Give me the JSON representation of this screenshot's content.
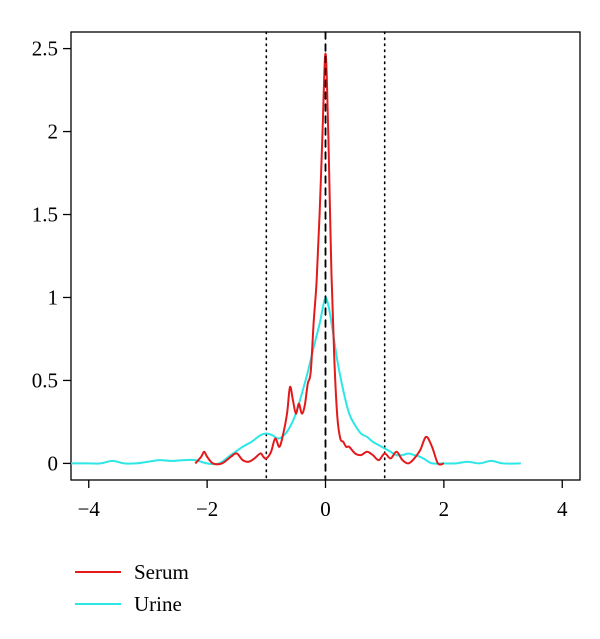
{
  "chart_data": {
    "type": "line",
    "title": "",
    "xlabel": "",
    "ylabel": "",
    "xlim": [
      -4.3,
      4.3
    ],
    "ylim": [
      -0.1,
      2.6
    ],
    "x_ticks": [
      -4,
      -2,
      0,
      2,
      4
    ],
    "x_tick_labels": [
      "−4",
      "−2",
      "0",
      "2",
      "4"
    ],
    "y_ticks": [
      0,
      0.5,
      1,
      1.5,
      2,
      2.5
    ],
    "y_tick_labels": [
      "0",
      "0.5",
      "1",
      "1.5",
      "2",
      "2.5"
    ],
    "grid": false,
    "legend_position": "bottom-left",
    "reference_lines": [
      {
        "x": -1,
        "style": "dotted",
        "color": "#000000"
      },
      {
        "x": 0,
        "style": "dashed",
        "color": "#000000"
      },
      {
        "x": 1,
        "style": "dotted",
        "color": "#000000"
      }
    ],
    "series": [
      {
        "name": "Serum",
        "color": "#e31a1c",
        "x": [
          -2.2,
          -2.1,
          -2.05,
          -2.0,
          -1.9,
          -1.75,
          -1.6,
          -1.5,
          -1.4,
          -1.3,
          -1.2,
          -1.1,
          -1.05,
          -1.0,
          -0.92,
          -0.85,
          -0.78,
          -0.72,
          -0.65,
          -0.6,
          -0.55,
          -0.5,
          -0.45,
          -0.4,
          -0.35,
          -0.3,
          -0.25,
          -0.2,
          -0.15,
          -0.1,
          -0.05,
          -0.02,
          0.0,
          0.02,
          0.05,
          0.1,
          0.15,
          0.2,
          0.25,
          0.3,
          0.35,
          0.4,
          0.5,
          0.6,
          0.7,
          0.8,
          0.9,
          1.0,
          1.1,
          1.2,
          1.3,
          1.4,
          1.5,
          1.6,
          1.7,
          1.8,
          1.9,
          2.0
        ],
        "values": [
          0.0,
          0.04,
          0.07,
          0.04,
          0.0,
          0.0,
          0.04,
          0.06,
          0.02,
          0.01,
          0.03,
          0.06,
          0.04,
          0.03,
          0.07,
          0.15,
          0.1,
          0.17,
          0.3,
          0.46,
          0.38,
          0.3,
          0.36,
          0.3,
          0.35,
          0.48,
          0.55,
          0.85,
          1.1,
          1.5,
          2.0,
          2.35,
          2.47,
          2.35,
          1.95,
          1.15,
          0.62,
          0.28,
          0.15,
          0.13,
          0.1,
          0.1,
          0.06,
          0.05,
          0.07,
          0.05,
          0.02,
          0.06,
          0.03,
          0.07,
          0.02,
          0.0,
          0.03,
          0.08,
          0.16,
          0.1,
          0.0,
          0.0
        ]
      },
      {
        "name": "Urine",
        "color": "#2de6e6",
        "x": [
          -4.3,
          -4.0,
          -3.8,
          -3.6,
          -3.4,
          -3.2,
          -3.0,
          -2.8,
          -2.6,
          -2.4,
          -2.2,
          -2.0,
          -1.8,
          -1.6,
          -1.4,
          -1.25,
          -1.1,
          -1.0,
          -0.9,
          -0.8,
          -0.7,
          -0.6,
          -0.5,
          -0.4,
          -0.3,
          -0.2,
          -0.1,
          -0.05,
          0.0,
          0.05,
          0.1,
          0.2,
          0.3,
          0.4,
          0.5,
          0.6,
          0.7,
          0.8,
          0.9,
          1.0,
          1.1,
          1.2,
          1.3,
          1.4,
          1.5,
          1.6,
          1.7,
          1.8,
          2.0,
          2.2,
          2.4,
          2.6,
          2.8,
          3.0,
          3.3
        ],
        "values": [
          0.0,
          0.0,
          0.0,
          0.015,
          0.0,
          0.0,
          0.01,
          0.02,
          0.015,
          0.02,
          0.02,
          0.0,
          0.0,
          0.05,
          0.1,
          0.13,
          0.17,
          0.18,
          0.17,
          0.15,
          0.17,
          0.22,
          0.3,
          0.42,
          0.55,
          0.7,
          0.84,
          0.93,
          1.0,
          0.95,
          0.85,
          0.62,
          0.44,
          0.3,
          0.23,
          0.18,
          0.16,
          0.13,
          0.11,
          0.09,
          0.07,
          0.05,
          0.05,
          0.06,
          0.05,
          0.04,
          0.02,
          0.0,
          0.0,
          0.0,
          0.01,
          0.0,
          0.015,
          0.0,
          0.0
        ]
      }
    ]
  }
}
